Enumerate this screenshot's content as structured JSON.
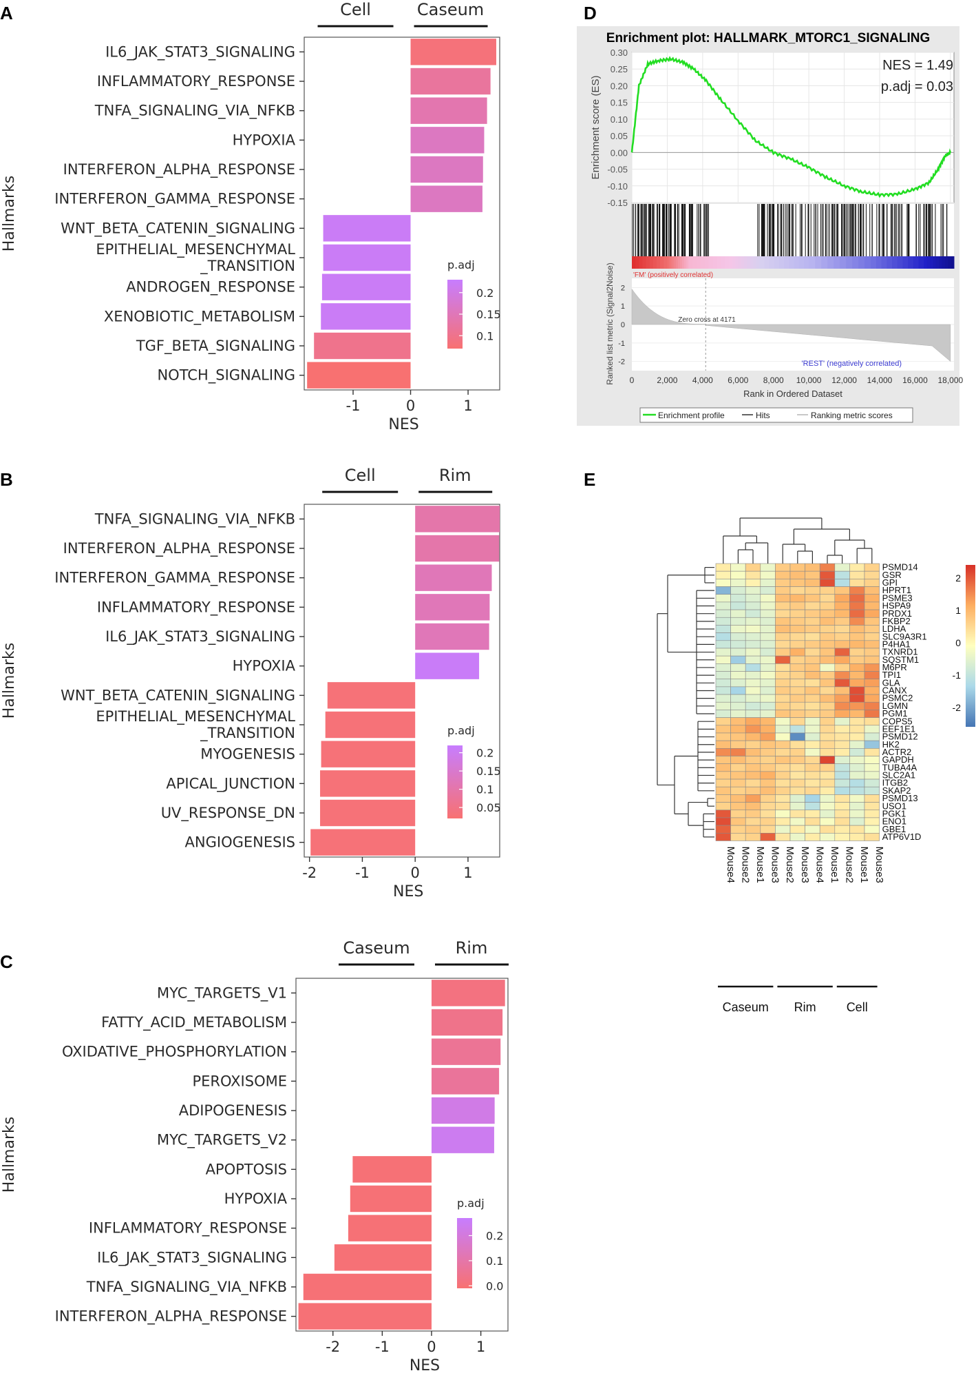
{
  "panels": {
    "a": "A",
    "b": "B",
    "c": "C",
    "d": "D",
    "e": "E"
  },
  "colors": {
    "low": "#f87171",
    "high": "#c77dff"
  },
  "chart_data": [
    {
      "panel": "A",
      "type": "bar",
      "orientation": "horizontal",
      "title": "",
      "xlabel": "NES",
      "ylabel": "Hallmarks",
      "xlim": [
        -1.85,
        1.55
      ],
      "xticks": [
        -1,
        0,
        1
      ],
      "group_left": "Cell",
      "group_right": "Caseum",
      "legend_title": "p.adj",
      "legend_ticks": [
        0.2,
        0.15,
        0.1
      ],
      "legend_range": [
        0.07,
        0.23
      ],
      "categories": [
        "IL6_JAK_STAT3_SIGNALING",
        "INFLAMMATORY_RESPONSE",
        "TNFA_SIGNALING_VIA_NFKB",
        "HYPOXIA",
        "INTERFERON_ALPHA_RESPONSE",
        "INTERFERON_GAMMA_RESPONSE",
        "WNT_BETA_CATENIN_SIGNALING",
        "EPITHELIAL_MESENCHYMAL\n_TRANSITION",
        "ANDROGEN_RESPONSE",
        "XENOBIOTIC_METABOLISM",
        "TGF_BETA_SIGNALING",
        "NOTCH_SIGNALING"
      ],
      "values": [
        1.49,
        1.39,
        1.33,
        1.28,
        1.26,
        1.25,
        -1.52,
        -1.52,
        -1.54,
        -1.56,
        -1.68,
        -1.8
      ],
      "padj": [
        0.08,
        0.12,
        0.14,
        0.16,
        0.16,
        0.16,
        0.22,
        0.22,
        0.22,
        0.22,
        0.1,
        0.07
      ]
    },
    {
      "panel": "B",
      "type": "bar",
      "orientation": "horizontal",
      "title": "",
      "xlabel": "NES",
      "ylabel": "Hallmarks",
      "xlim": [
        -2.1,
        1.6
      ],
      "xticks": [
        -2,
        -1,
        0,
        1
      ],
      "group_left": "Cell",
      "group_right": "Rim",
      "legend_title": "p.adj",
      "legend_ticks": [
        0.2,
        0.15,
        0.1,
        0.05
      ],
      "legend_range": [
        0.02,
        0.22
      ],
      "categories": [
        "TNFA_SIGNALING_VIA_NFKB",
        "INTERFERON_ALPHA_RESPONSE",
        "INTERFERON_GAMMA_RESPONSE",
        "INFLAMMATORY_RESPONSE",
        "IL6_JAK_STAT3_SIGNALING",
        "HYPOXIA",
        "WNT_BETA_CATENIN_SIGNALING",
        "EPITHELIAL_MESENCHYMAL\n_TRANSITION",
        "MYOGENESIS",
        "APICAL_JUNCTION",
        "UV_RESPONSE_DN",
        "ANGIOGENESIS"
      ],
      "values": [
        1.6,
        1.59,
        1.45,
        1.41,
        1.4,
        1.21,
        -1.66,
        -1.7,
        -1.78,
        -1.8,
        -1.8,
        -1.98
      ],
      "padj": [
        0.1,
        0.1,
        0.12,
        0.12,
        0.12,
        0.21,
        0.03,
        0.03,
        0.03,
        0.03,
        0.03,
        0.03
      ]
    },
    {
      "panel": "C",
      "type": "bar",
      "orientation": "horizontal",
      "title": "",
      "xlabel": "NES",
      "ylabel": "Hallmarks",
      "xlim": [
        -2.75,
        1.55
      ],
      "xticks": [
        -2,
        -1,
        0,
        1
      ],
      "group_left": "Caseum",
      "group_right": "Rim",
      "legend_title": "p.adj",
      "legend_ticks": [
        0.2,
        0.1,
        0.0
      ],
      "legend_range": [
        -0.01,
        0.27
      ],
      "categories": [
        "MYC_TARGETS_V1",
        "FATTY_ACID_METABOLISM",
        "OXIDATIVE_PHOSPHORYLATION",
        "PEROXISOME",
        "ADIPOGENESIS",
        "MYC_TARGETS_V2",
        "APOPTOSIS",
        "HYPOXIA",
        "INFLAMMATORY_RESPONSE",
        "IL6_JAK_STAT3_SIGNALING",
        "TNFA_SIGNALING_VIA_NFKB",
        "INTERFERON_ALPHA_RESPONSE"
      ],
      "values": [
        1.49,
        1.44,
        1.4,
        1.37,
        1.28,
        1.27,
        -1.6,
        -1.65,
        -1.69,
        -1.97,
        -2.6,
        -2.7
      ],
      "padj": [
        0.02,
        0.04,
        0.06,
        0.07,
        0.22,
        0.24,
        0.0,
        0.0,
        0.0,
        0.0,
        0.0,
        0.0
      ]
    },
    {
      "panel": "D",
      "type": "line",
      "title": "Enrichment plot: HALLMARK_MTORC1_SIGNALING",
      "xlabel": "Rank in Ordered Dataset",
      "ylabel": "Enrichment score (ES)",
      "ylabel2": "Ranked list metric (Signal2Noise)",
      "xlim": [
        0,
        18200
      ],
      "ylim": [
        -0.15,
        0.3
      ],
      "yticks": [
        "0.30",
        "0.25",
        "0.20",
        "0.15",
        "0.10",
        "0.05",
        "0.00",
        "-0.05",
        "-0.10",
        "-0.15"
      ],
      "xticks": [
        "0",
        "2,000",
        "4,000",
        "6,000",
        "8,000",
        "10,000",
        "12,000",
        "14,000",
        "16,000",
        "18,000"
      ],
      "metric_yticks": [
        "2",
        "1",
        "0",
        "-1",
        "-2"
      ],
      "nes_text": "NES = 1.49",
      "padj_text": "p.adj = 0.03",
      "zero_cross": "Zero cross at 4171",
      "pos_label": "'FM' (positively correlated)",
      "neg_label": "'REST' (negatively correlated)",
      "legend": [
        "Enrichment profile",
        "Hits",
        "Ranking metric scores"
      ],
      "x": [
        0,
        400,
        900,
        1500,
        2200,
        2900,
        3500,
        4200,
        5000,
        6000,
        7000,
        8000,
        9000,
        10000,
        11000,
        12000,
        13000,
        14000,
        15000,
        16000,
        16800,
        17300,
        17700,
        18000
      ],
      "es": [
        0.0,
        0.2,
        0.265,
        0.275,
        0.28,
        0.27,
        0.25,
        0.215,
        0.16,
        0.095,
        0.035,
        0.0,
        -0.02,
        -0.045,
        -0.075,
        -0.1,
        -0.118,
        -0.127,
        -0.125,
        -0.11,
        -0.09,
        -0.05,
        -0.01,
        0.0
      ]
    },
    {
      "panel": "E",
      "type": "heatmap",
      "genes": [
        "PSMD14",
        "GSR",
        "GPI",
        "HPRT1",
        "PSME3",
        "HSPA9",
        "PRDX1",
        "FKBP2",
        "LDHA",
        "SLC9A3R1",
        "P4HA1",
        "TXNRD1",
        "SQSTM1",
        "M6PR",
        "TPI1",
        "GLA",
        "CANX",
        "PSMC2",
        "LGMN",
        "PGM1",
        "COPS5",
        "EEF1E1",
        "PSMD12",
        "HK2",
        "ACTR2",
        "GAPDH",
        "TUBA4A",
        "SLC2A1",
        "ITGB2",
        "SKAP2",
        "PSMD13",
        "USO1",
        "PGK1",
        "ENO1",
        "GBE1",
        "ATP6V1D"
      ],
      "samples": [
        "Mouse4",
        "Mouse2",
        "Mouse1",
        "Mouse3",
        "Mouse2",
        "Mouse3",
        "Mouse4",
        "Mouse1",
        "Mouse2",
        "Mouse1",
        "Mouse3"
      ],
      "groups": [
        {
          "name": "Caseum",
          "count": 4
        },
        {
          "name": "Rim",
          "count": 4
        },
        {
          "name": "Cell",
          "count": 3
        }
      ],
      "scale_ticks": [
        "2",
        "1",
        "0",
        "-1",
        "-2"
      ],
      "scale_range": [
        -2.6,
        2.4
      ],
      "values": [
        [
          0.2,
          -0.3,
          0.6,
          -0.4,
          0.7,
          0.8,
          0.9,
          1.6,
          -0.5,
          0.2,
          0.6
        ],
        [
          0.1,
          -0.2,
          0.3,
          -0.3,
          0.8,
          0.9,
          0.8,
          2.0,
          -1.1,
          0.3,
          0.5
        ],
        [
          -0.2,
          -0.4,
          0.1,
          -0.5,
          0.7,
          0.8,
          0.9,
          2.1,
          -1.2,
          0.4,
          0.6
        ],
        [
          -1.8,
          -0.7,
          -0.5,
          -0.7,
          0.7,
          0.5,
          0.6,
          0.6,
          0.8,
          1.6,
          0.9
        ],
        [
          -0.4,
          -0.8,
          -0.6,
          -0.3,
          0.9,
          1.0,
          0.8,
          0.5,
          1.2,
          1.8,
          1.1
        ],
        [
          -0.6,
          -0.9,
          -0.7,
          -0.4,
          0.6,
          0.7,
          0.5,
          0.6,
          1.1,
          1.7,
          1.0
        ],
        [
          -0.7,
          -0.5,
          -0.8,
          -0.5,
          0.5,
          0.6,
          0.7,
          0.8,
          1.0,
          1.8,
          1.2
        ],
        [
          -0.8,
          -0.6,
          -0.5,
          -0.6,
          0.8,
          0.7,
          0.6,
          0.9,
          0.7,
          1.5,
          0.8
        ],
        [
          -1.0,
          -0.4,
          -0.3,
          -0.5,
          0.9,
          0.8,
          0.7,
          0.6,
          0.5,
          0.9,
          0.7
        ],
        [
          -1.2,
          -0.7,
          -0.6,
          -0.5,
          0.6,
          0.5,
          0.4,
          0.7,
          0.6,
          0.8,
          0.6
        ],
        [
          -0.9,
          -0.8,
          -0.7,
          -0.6,
          0.5,
          0.6,
          0.7,
          0.8,
          0.9,
          1.0,
          0.9
        ],
        [
          -0.5,
          -0.6,
          -0.4,
          -0.7,
          0.7,
          1.1,
          0.5,
          0.8,
          1.9,
          0.6,
          0.7
        ],
        [
          -0.3,
          -1.5,
          -0.5,
          -0.4,
          1.9,
          0.6,
          0.7,
          0.9,
          1.2,
          0.7,
          0.8
        ],
        [
          -0.6,
          -0.5,
          -1.2,
          -0.5,
          0.4,
          0.7,
          0.8,
          -0.3,
          0.6,
          1.1,
          1.4
        ],
        [
          -0.7,
          -0.4,
          -0.5,
          -0.3,
          0.5,
          0.6,
          0.9,
          0.7,
          1.5,
          1.0,
          1.6
        ],
        [
          -0.8,
          -0.6,
          -0.4,
          -0.5,
          0.6,
          0.5,
          0.4,
          0.8,
          2.0,
          1.2,
          1.3
        ],
        [
          -0.9,
          -1.4,
          -0.3,
          -0.6,
          0.7,
          0.6,
          0.8,
          0.5,
          0.9,
          2.1,
          1.1
        ],
        [
          -0.6,
          -0.7,
          -0.5,
          -0.4,
          0.5,
          0.7,
          0.6,
          0.9,
          1.3,
          2.1,
          1.2
        ],
        [
          -0.5,
          -0.6,
          -0.8,
          -0.7,
          0.6,
          0.5,
          0.4,
          0.6,
          1.5,
          1.4,
          1.6
        ],
        [
          -0.7,
          -0.5,
          -0.6,
          -0.5,
          0.8,
          0.7,
          0.6,
          0.7,
          1.2,
          1.0,
          1.7
        ],
        [
          0.6,
          0.9,
          1.2,
          1.0,
          -0.3,
          0.5,
          -0.4,
          0.6,
          -0.5,
          0.3,
          0.4
        ],
        [
          0.8,
          1.0,
          1.4,
          1.1,
          -0.5,
          -1.1,
          -0.4,
          0.5,
          0.2,
          0.3,
          -0.4
        ],
        [
          0.7,
          0.8,
          1.0,
          1.3,
          -0.2,
          -2.3,
          -0.6,
          0.4,
          0.3,
          0.2,
          -0.7
        ],
        [
          0.9,
          0.7,
          0.6,
          0.8,
          0.7,
          0.4,
          0.2,
          0.5,
          0.3,
          -0.5,
          -1.6
        ],
        [
          1.5,
          1.6,
          0.9,
          0.7,
          0.5,
          0.6,
          -0.3,
          0.4,
          0.2,
          -0.8,
          0.3
        ],
        [
          0.8,
          0.9,
          0.7,
          0.6,
          0.8,
          0.7,
          0.5,
          2.2,
          -0.6,
          -0.4,
          -0.2
        ],
        [
          0.9,
          0.6,
          0.8,
          0.7,
          0.5,
          0.4,
          0.6,
          0.6,
          -1.0,
          -0.6,
          -0.3
        ],
        [
          0.7,
          0.8,
          0.9,
          1.1,
          0.6,
          0.3,
          0.4,
          0.3,
          -1.1,
          -0.5,
          -0.4
        ],
        [
          0.6,
          0.7,
          0.5,
          0.8,
          0.4,
          0.5,
          0.3,
          0.4,
          -0.9,
          -1.2,
          -0.8
        ],
        [
          0.8,
          0.6,
          0.7,
          0.9,
          0.6,
          0.4,
          0.5,
          0.2,
          -1.2,
          -1.1,
          -0.9
        ],
        [
          0.7,
          0.9,
          1.3,
          0.6,
          0.3,
          -0.6,
          -1.4,
          -0.4,
          0.3,
          -0.3,
          0.4
        ],
        [
          0.6,
          0.8,
          0.9,
          0.5,
          0.4,
          -0.5,
          -1.1,
          -0.3,
          0.2,
          -0.5,
          0.3
        ],
        [
          2.0,
          0.6,
          0.7,
          0.4,
          -0.2,
          0.3,
          0.2,
          -0.5,
          0.3,
          -0.4,
          0.2
        ],
        [
          2.1,
          0.8,
          0.5,
          0.6,
          0.2,
          -0.3,
          0.4,
          -0.2,
          0.4,
          -0.6,
          0.1
        ],
        [
          1.9,
          0.6,
          0.7,
          0.5,
          -0.4,
          0.2,
          -0.3,
          0.4,
          0.2,
          0.3,
          -0.2
        ],
        [
          2.0,
          0.5,
          0.6,
          1.9,
          0.3,
          -0.4,
          0.2,
          -0.3,
          0.1,
          0.2,
          0.4
        ]
      ]
    }
  ]
}
